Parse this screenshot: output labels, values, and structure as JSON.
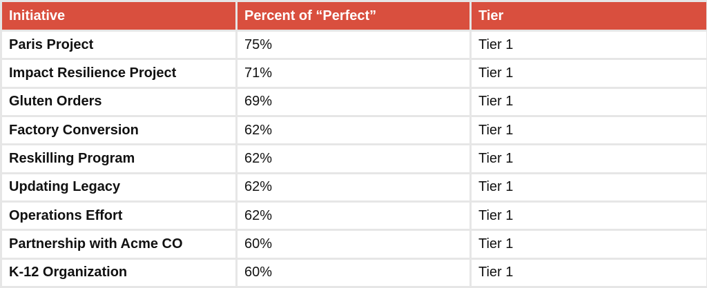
{
  "table": {
    "columns": [
      "Initiative",
      "Percent of “Perfect”",
      "Tier"
    ],
    "rows": [
      {
        "initiative": "Paris Project",
        "percent": "75%",
        "tier": "Tier 1"
      },
      {
        "initiative": "Impact Resilience Project",
        "percent": "71%",
        "tier": "Tier 1"
      },
      {
        "initiative": "Gluten Orders",
        "percent": "69%",
        "tier": "Tier 1"
      },
      {
        "initiative": "Factory Conversion",
        "percent": "62%",
        "tier": "Tier 1"
      },
      {
        "initiative": "Reskilling Program",
        "percent": "62%",
        "tier": "Tier 1"
      },
      {
        "initiative": "Updating Legacy",
        "percent": "62%",
        "tier": "Tier 1"
      },
      {
        "initiative": "Operations Effort",
        "percent": "62%",
        "tier": "Tier 1"
      },
      {
        "initiative": "Partnership with Acme CO",
        "percent": "60%",
        "tier": "Tier 1"
      },
      {
        "initiative": "K-12 Organization",
        "percent": "60%",
        "tier": "Tier 1"
      }
    ]
  },
  "colors": {
    "header_background": "#d94f3e",
    "header_text": "#ffffff",
    "grid_lines": "#e6e6e6"
  }
}
